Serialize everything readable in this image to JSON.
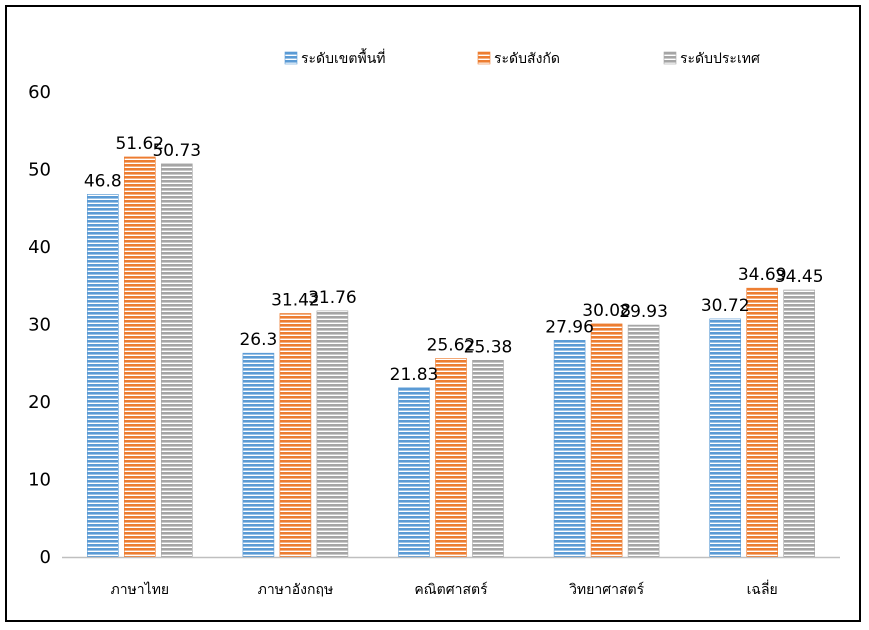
{
  "chart_data": {
    "type": "bar",
    "title": "",
    "xlabel": "",
    "ylabel": "",
    "ylim": [
      0,
      60
    ],
    "yticks": [
      0,
      10,
      20,
      30,
      40,
      50,
      60
    ],
    "grid": false,
    "legend_position": "top",
    "categories": [
      "ภาษาไทย",
      "ภาษาอังกฤษ",
      "คณิตศาสตร์",
      "วิทยาศาสตร์",
      "เฉลี่ย"
    ],
    "series": [
      {
        "name": "ระดับเขตพื้นที่",
        "color": "#5b9bd5",
        "values": [
          46.8,
          26.3,
          21.83,
          27.96,
          30.72
        ]
      },
      {
        "name": "ระดับสังกัด",
        "color": "#ed7d31",
        "values": [
          51.62,
          31.42,
          25.62,
          30.08,
          34.69
        ]
      },
      {
        "name": "ระดับประเทศ",
        "color": "#a5a5a5",
        "values": [
          50.73,
          31.76,
          25.38,
          29.93,
          34.45
        ]
      }
    ]
  }
}
